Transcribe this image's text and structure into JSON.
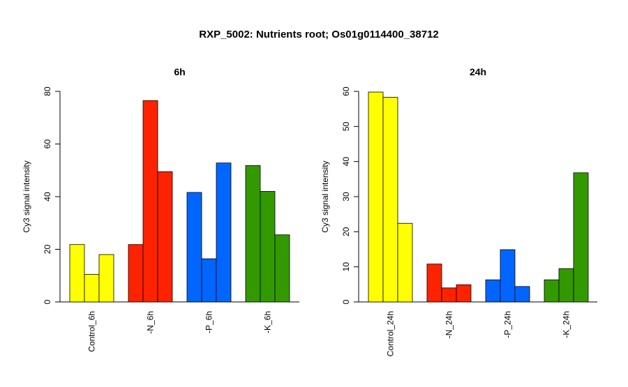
{
  "title": "RXP_5002: Nutrients root; Os01g0114400_38712",
  "chart_data": [
    {
      "type": "bar",
      "title": "6h",
      "ylabel": "Cy3 signal intensity",
      "xlabel": "",
      "ylim": [
        0,
        80
      ],
      "yticks": [
        0,
        20,
        40,
        60,
        80
      ],
      "categories": [
        "Control_6h",
        "-N_6h",
        "-P_6h",
        "-K_6h"
      ],
      "colors": [
        "#FFFF00",
        "#FF2200",
        "#0066FF",
        "#339900"
      ],
      "values": [
        [
          21.8,
          10.5,
          18.0
        ],
        [
          21.8,
          76.5,
          49.5
        ],
        [
          41.6,
          16.4,
          52.8
        ],
        [
          51.8,
          42.0,
          25.5
        ]
      ]
    },
    {
      "type": "bar",
      "title": "24h",
      "ylabel": "Cy3 signal intensity",
      "xlabel": "",
      "ylim": [
        0,
        60
      ],
      "yticks": [
        0,
        10,
        20,
        30,
        40,
        50,
        60
      ],
      "categories": [
        "Control_24h",
        "-N_24h",
        "-P_24h",
        "-K_24h"
      ],
      "colors": [
        "#FFFF00",
        "#FF2200",
        "#0066FF",
        "#339900"
      ],
      "values": [
        [
          59.8,
          58.3,
          22.4
        ],
        [
          10.8,
          4.0,
          4.9
        ],
        [
          6.3,
          14.9,
          4.4
        ],
        [
          6.3,
          9.5,
          36.8
        ]
      ]
    }
  ]
}
